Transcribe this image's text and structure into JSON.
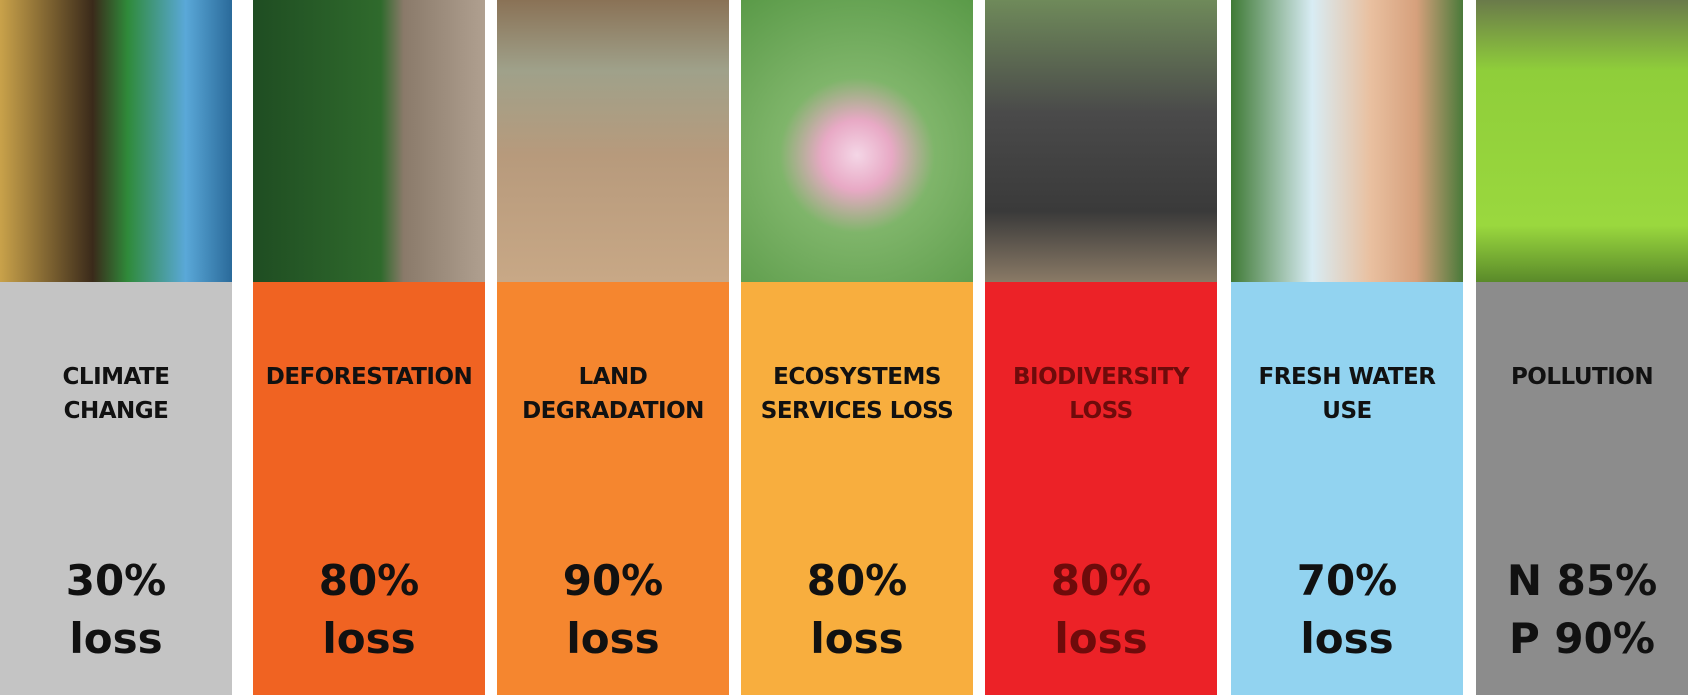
{
  "columns": [
    {
      "title": "CLIMATE CHANGE",
      "lines": [
        "30%",
        "loss"
      ],
      "color": "#c4c4c4",
      "text_color": "#111111"
    },
    {
      "title": "DEFORESTATION",
      "lines": [
        "80%",
        "loss"
      ],
      "color": "#f06322",
      "text_color": "#111111"
    },
    {
      "title": "LAND DEGRADATION",
      "lines": [
        "90%",
        "loss"
      ],
      "color": "#f5862f",
      "text_color": "#111111"
    },
    {
      "title": "ECOSYSTEMS SERVICES LOSS",
      "lines": [
        "80%",
        "loss"
      ],
      "color": "#f8ae3e",
      "text_color": "#111111"
    },
    {
      "title": "BIODIVERSITY LOSS",
      "lines": [
        "80%",
        "loss"
      ],
      "color": "#ec2227",
      "text_color": "#6e0b0b"
    },
    {
      "title": "FRESH WATER USE",
      "lines": [
        "70%",
        "loss"
      ],
      "color": "#92d3f0",
      "text_color": "#111111"
    },
    {
      "title": "POLLUTION",
      "lines": [
        "N 85%",
        "P 90%"
      ],
      "color": "#8c8c8c",
      "text_color": "#111111"
    }
  ]
}
